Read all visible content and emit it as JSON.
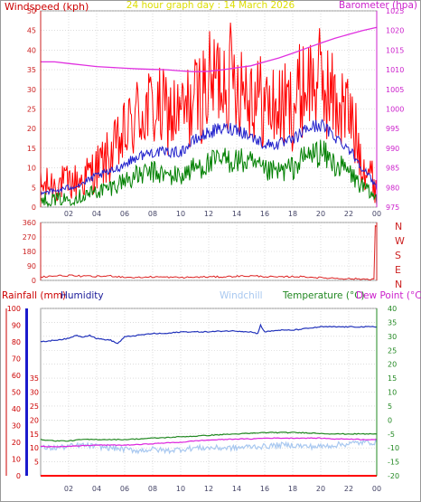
{
  "header": {
    "windspeed_title": "Windspeed (kph)",
    "graph_title": "24 hour graph day : 14 March 2026",
    "barometer_title": "Barometer (hpa)"
  },
  "headers2": {
    "rainfall": "Rainfall (mm)",
    "humidity": "Humidity",
    "windchill": "Windchill",
    "temperature": "Temperature (°C)",
    "dewpoint": "Dew Point (°C)"
  },
  "colors": {
    "gust": "#ff0000",
    "avg": "#008000",
    "wind_blue": "#2222cc",
    "barometer": "#e030e0",
    "title": "#dddd00",
    "direction": "#dd2222",
    "rain": "#ff0000",
    "humidity": "#2233bb",
    "windchill": "#a8c8f0",
    "temperature": "#228822",
    "dewpoint": "#dd22dd",
    "humidity_axis": "#1a1acc",
    "grid": "#c8c8c8"
  },
  "chart_data": [
    {
      "type": "line",
      "panel": "wind",
      "x_tick_labels": [
        "02",
        "04",
        "06",
        "08",
        "10",
        "12",
        "14",
        "16",
        "18",
        "20",
        "22",
        "00"
      ],
      "x_range_hours": [
        0,
        24
      ],
      "left_axis": {
        "ylim": [
          0,
          50
        ],
        "ticks": [
          0,
          5,
          10,
          15,
          20,
          25,
          30,
          35,
          40,
          45,
          50
        ]
      },
      "right_axis": {
        "ylim": [
          975,
          1025
        ],
        "ticks": [
          975,
          980,
          985,
          990,
          995,
          1000,
          1005,
          1010,
          1015,
          1020,
          1025
        ]
      },
      "series": [
        {
          "name": "Windspeed (kph)",
          "role": "gust",
          "color": "#ff0000",
          "axis": "left",
          "x": [
            0,
            1,
            2,
            3,
            4,
            5,
            6,
            7,
            8,
            9,
            10,
            11,
            12,
            13,
            14,
            15,
            16,
            17,
            18,
            19,
            20,
            21,
            22,
            23,
            24
          ],
          "y": [
            5,
            6,
            6,
            7,
            10,
            13,
            18,
            24,
            25,
            24,
            23,
            27,
            31,
            34,
            33,
            30,
            26,
            25,
            26,
            32,
            32,
            27,
            24,
            12,
            5
          ]
        },
        {
          "role": "average",
          "color": "#008000",
          "axis": "left",
          "x": [
            0,
            1,
            2,
            3,
            4,
            5,
            6,
            7,
            8,
            9,
            10,
            11,
            12,
            13,
            14,
            15,
            16,
            17,
            18,
            19,
            20,
            21,
            22,
            23,
            24
          ],
          "y": [
            2,
            2,
            2,
            3,
            4,
            5,
            7,
            8,
            9,
            8,
            8,
            10,
            11,
            12,
            12,
            11,
            9,
            9,
            10,
            13,
            14,
            11,
            9,
            5,
            2
          ]
        },
        {
          "role": "mean",
          "color": "#2222cc",
          "axis": "left",
          "x": [
            0,
            1,
            2,
            3,
            4,
            5,
            6,
            7,
            8,
            9,
            10,
            11,
            12,
            13,
            14,
            15,
            16,
            17,
            18,
            19,
            20,
            21,
            22,
            23,
            24
          ],
          "y": [
            4,
            4,
            5,
            6,
            8,
            9,
            11,
            13,
            14,
            14,
            14,
            17,
            19,
            20,
            20,
            18,
            16,
            16,
            17,
            20,
            21,
            18,
            15,
            10,
            5
          ]
        },
        {
          "name": "Barometer (hpa)",
          "color": "#e030e0",
          "axis": "right",
          "x": [
            0,
            1,
            2,
            3,
            4,
            5,
            6,
            7,
            8,
            9,
            10,
            11,
            12,
            13,
            14,
            15,
            16,
            17,
            18,
            19,
            20,
            21,
            22,
            23,
            24
          ],
          "y": [
            1012,
            1012,
            1011.6,
            1011.2,
            1010.8,
            1010.6,
            1010.4,
            1010.2,
            1010.1,
            1010,
            1009.7,
            1009.5,
            1009.6,
            1010,
            1010.5,
            1011,
            1012,
            1013,
            1014.2,
            1015.5,
            1016.8,
            1018,
            1019,
            1020,
            1020.8
          ]
        }
      ]
    },
    {
      "type": "line",
      "panel": "direction",
      "x_range_hours": [
        0,
        24
      ],
      "left_axis": {
        "ylim": [
          0,
          360
        ],
        "ticks": [
          0,
          90,
          180,
          270,
          360
        ]
      },
      "right_axis_labels": [
        "N",
        "W",
        "S",
        "E",
        "N"
      ],
      "series": [
        {
          "color": "#dd2222",
          "x": [
            0,
            1,
            2,
            3,
            4,
            5,
            6,
            7,
            8,
            9,
            10,
            11,
            12,
            13,
            14,
            15,
            16,
            17,
            18,
            19,
            20,
            21,
            22,
            23,
            23.8,
            23.9,
            24
          ],
          "y": [
            22,
            28,
            30,
            26,
            24,
            28,
            20,
            18,
            22,
            20,
            18,
            20,
            22,
            22,
            26,
            28,
            24,
            20,
            24,
            22,
            16,
            14,
            10,
            8,
            8,
            340,
            335
          ]
        }
      ]
    },
    {
      "type": "line",
      "panel": "temperature",
      "x_tick_labels": [
        "02",
        "04",
        "06",
        "08",
        "10",
        "12",
        "14",
        "16",
        "18",
        "20",
        "22",
        "00"
      ],
      "x_range_hours": [
        0,
        24
      ],
      "rain_axis": {
        "ylim": [
          0,
          100
        ],
        "ticks": [
          0,
          10,
          20,
          30,
          40,
          50,
          60,
          70,
          80,
          90,
          100
        ]
      },
      "humidity_axis": {
        "ylim": [
          0,
          100
        ],
        "ticks": [
          5,
          10,
          15,
          20,
          25,
          30,
          35
        ]
      },
      "temp_axis": {
        "ylim": [
          -20,
          40
        ],
        "ticks": [
          -20,
          -15,
          -10,
          -5,
          0,
          5,
          10,
          15,
          20,
          25,
          30,
          35,
          40
        ]
      },
      "series": [
        {
          "name": "Rainfall (mm)",
          "color": "#ff0000",
          "axis": "rain",
          "x": [
            0,
            24
          ],
          "y": [
            0,
            0
          ]
        },
        {
          "name": "Humidity",
          "color": "#2233bb",
          "axis": "rain",
          "x": [
            0,
            1,
            2,
            2.5,
            3,
            3.5,
            4,
            5,
            5.5,
            6,
            7,
            8,
            9,
            10,
            11,
            12,
            13,
            14,
            15,
            15.5,
            15.7,
            16,
            17,
            18,
            19,
            20,
            21,
            22,
            23,
            24
          ],
          "y": [
            80,
            81,
            82,
            84,
            83,
            84,
            82,
            81,
            79,
            83,
            84,
            85,
            85,
            86,
            86,
            86,
            86.5,
            86.5,
            86,
            85,
            90,
            86,
            87,
            87,
            88,
            89,
            89,
            89,
            89,
            89
          ]
        },
        {
          "name": "Windchill",
          "color": "#a8c8f0",
          "axis": "temp",
          "x": [
            0,
            1,
            2,
            3,
            4,
            5,
            6,
            7,
            8,
            9,
            10,
            11,
            12,
            13,
            14,
            15,
            16,
            17,
            18,
            19,
            20,
            21,
            22,
            23,
            24
          ],
          "y": [
            -10,
            -10,
            -9.5,
            -9,
            -9.5,
            -10,
            -10.5,
            -11,
            -10.5,
            -11,
            -10.5,
            -10,
            -10,
            -10,
            -10,
            -9.5,
            -9.5,
            -9,
            -9,
            -9.5,
            -9.5,
            -9,
            -8.5,
            -8,
            -8
          ]
        },
        {
          "name": "Temperature (°C)",
          "color": "#228822",
          "axis": "temp",
          "x": [
            0,
            1,
            2,
            3,
            4,
            5,
            6,
            7,
            8,
            9,
            10,
            11,
            12,
            13,
            14,
            15,
            16,
            17,
            18,
            19,
            20,
            21,
            22,
            23,
            24
          ],
          "y": [
            -7,
            -7.5,
            -7.5,
            -7,
            -7,
            -7,
            -7,
            -6.8,
            -6.5,
            -6.3,
            -6,
            -5.8,
            -5.5,
            -5.2,
            -5,
            -4.8,
            -4.5,
            -4.5,
            -4.5,
            -4.6,
            -4.8,
            -5,
            -5,
            -5,
            -5
          ]
        },
        {
          "name": "Dew Point (°C)",
          "color": "#dd22dd",
          "axis": "temp",
          "x": [
            0,
            1,
            2,
            3,
            4,
            5,
            6,
            7,
            8,
            9,
            10,
            11,
            12,
            13,
            14,
            15,
            16,
            17,
            18,
            19,
            20,
            21,
            22,
            23,
            24
          ],
          "y": [
            -9.5,
            -9.5,
            -9.5,
            -9.2,
            -9,
            -9,
            -9,
            -8.8,
            -8.5,
            -8.2,
            -8,
            -7.5,
            -7.2,
            -7,
            -6.8,
            -6.8,
            -6.5,
            -6.5,
            -6.5,
            -6.5,
            -6.5,
            -6.8,
            -6.8,
            -7,
            -7
          ]
        }
      ]
    }
  ]
}
